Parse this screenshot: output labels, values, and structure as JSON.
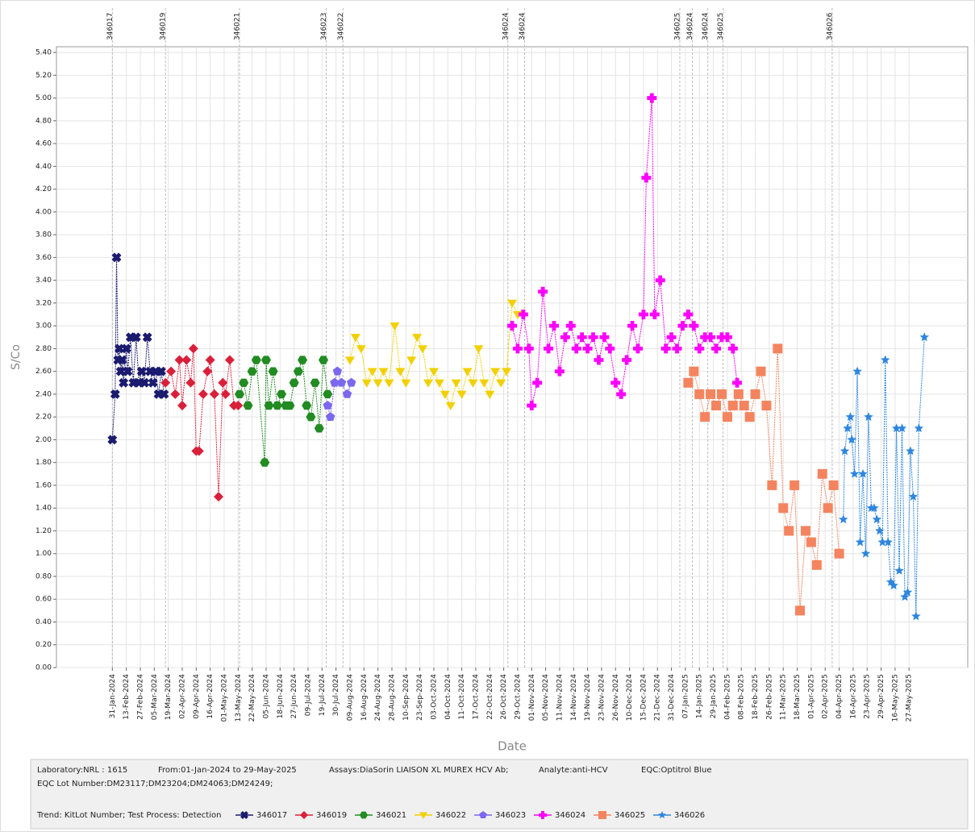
{
  "chart_data": {
    "type": "scatter",
    "ylabel": "S/Co",
    "xlabel": "Date",
    "ylim": [
      0,
      5.45
    ],
    "xlim": [
      -4,
      61.2
    ],
    "yticks": [
      {
        "value": 0,
        "label": "0.00"
      },
      {
        "value": 0.2,
        "label": "0.20"
      },
      {
        "value": 0.4,
        "label": "0.40"
      },
      {
        "value": 0.6,
        "label": "0.60"
      },
      {
        "value": 0.8,
        "label": "0.80"
      },
      {
        "value": 1,
        "label": "1.00"
      },
      {
        "value": 1.2,
        "label": "1.20"
      },
      {
        "value": 1.4,
        "label": "1.40"
      },
      {
        "value": 1.6,
        "label": "1.60"
      },
      {
        "value": 1.8,
        "label": "1.80"
      },
      {
        "value": 2,
        "label": "2.00"
      },
      {
        "value": 2.2,
        "label": "2.20"
      },
      {
        "value": 2.4,
        "label": "2.40"
      },
      {
        "value": 2.6,
        "label": "2.60"
      },
      {
        "value": 2.8,
        "label": "2.80"
      },
      {
        "value": 3,
        "label": "3.00"
      },
      {
        "value": 3.2,
        "label": "3.20"
      },
      {
        "value": 3.4,
        "label": "3.40"
      },
      {
        "value": 3.6,
        "label": "3.60"
      },
      {
        "value": 3.8,
        "label": "3.80"
      },
      {
        "value": 4,
        "label": "4.00"
      },
      {
        "value": 4.2,
        "label": "4.20"
      },
      {
        "value": 4.4,
        "label": "4.40"
      },
      {
        "value": 4.6,
        "label": "4.60"
      },
      {
        "value": 4.8,
        "label": "4.80"
      },
      {
        "value": 5,
        "label": "5.00"
      },
      {
        "value": 5.2,
        "label": "5.20"
      },
      {
        "value": 5.4,
        "label": "5.40"
      }
    ],
    "xticks": [
      {
        "value": 0,
        "label": "31-Jan-2024"
      },
      {
        "value": 1,
        "label": "13-Feb-2024"
      },
      {
        "value": 2,
        "label": "27-Feb-2024"
      },
      {
        "value": 3,
        "label": "05-Mar-2024"
      },
      {
        "value": 4,
        "label": "19-Mar-2024"
      },
      {
        "value": 5,
        "label": "02-Apr-2024"
      },
      {
        "value": 6,
        "label": "09-Apr-2024"
      },
      {
        "value": 7,
        "label": "16-Apr-2024"
      },
      {
        "value": 8,
        "label": "01-May-2024"
      },
      {
        "value": 9,
        "label": "13-May-2024"
      },
      {
        "value": 10,
        "label": "22-May-2024"
      },
      {
        "value": 11,
        "label": "05-Jun-2024"
      },
      {
        "value": 12,
        "label": "18-Jun-2024"
      },
      {
        "value": 13,
        "label": "27-Jun-2024"
      },
      {
        "value": 14,
        "label": "09-Jul-2024"
      },
      {
        "value": 15,
        "label": "19-Jul-2024"
      },
      {
        "value": 16,
        "label": "30-Jul-2024"
      },
      {
        "value": 17,
        "label": "09-Aug-2024"
      },
      {
        "value": 18,
        "label": "16-Aug-2024"
      },
      {
        "value": 19,
        "label": "24-Aug-2024"
      },
      {
        "value": 20,
        "label": "28-Aug-2024"
      },
      {
        "value": 21,
        "label": "10-Sep-2024"
      },
      {
        "value": 22,
        "label": "23-Sep-2024"
      },
      {
        "value": 23,
        "label": "03-Oct-2024"
      },
      {
        "value": 24,
        "label": "04-Oct-2024"
      },
      {
        "value": 25,
        "label": "11-Oct-2024"
      },
      {
        "value": 26,
        "label": "17-Oct-2024"
      },
      {
        "value": 27,
        "label": "22-Oct-2024"
      },
      {
        "value": 28,
        "label": "26-Oct-2024"
      },
      {
        "value": 29,
        "label": "29-Oct-2024"
      },
      {
        "value": 30,
        "label": "01-Nov-2024"
      },
      {
        "value": 31,
        "label": "05-Nov-2024"
      },
      {
        "value": 32,
        "label": "11-Nov-2024"
      },
      {
        "value": 33,
        "label": "14-Nov-2024"
      },
      {
        "value": 34,
        "label": "19-Nov-2024"
      },
      {
        "value": 35,
        "label": "23-Nov-2024"
      },
      {
        "value": 36,
        "label": "26-Nov-2024"
      },
      {
        "value": 37,
        "label": "10-Dec-2024"
      },
      {
        "value": 38,
        "label": "15-Dec-2024"
      },
      {
        "value": 39,
        "label": "21-Dec-2024"
      },
      {
        "value": 40,
        "label": "31-Dec-2024"
      },
      {
        "value": 41,
        "label": "07-Jan-2025"
      },
      {
        "value": 42,
        "label": "14-Jan-2025"
      },
      {
        "value": 43,
        "label": "29-Jan-2025"
      },
      {
        "value": 44,
        "label": "04-Feb-2025"
      },
      {
        "value": 45,
        "label": "08-Feb-2025"
      },
      {
        "value": 46,
        "label": "18-Feb-2025"
      },
      {
        "value": 47,
        "label": "26-Feb-2025"
      },
      {
        "value": 48,
        "label": "11-Mar-2025"
      },
      {
        "value": 49,
        "label": "18-Mar-2025"
      },
      {
        "value": 50,
        "label": "01-Apr-2025"
      },
      {
        "value": 51,
        "label": "02-Apr-2025"
      },
      {
        "value": 52,
        "label": "04-Apr-2025"
      },
      {
        "value": 53,
        "label": "16-Apr-2025"
      },
      {
        "value": 54,
        "label": "23-Apr-2025"
      },
      {
        "value": 55,
        "label": "29-Apr-2025"
      },
      {
        "value": 56,
        "label": "16-May-2025"
      },
      {
        "value": 57,
        "label": "27-May-2025"
      }
    ],
    "lot_lines": [
      {
        "x": 0,
        "label": "346017"
      },
      {
        "x": 3.8,
        "label": "346019"
      },
      {
        "x": 9.1,
        "label": "346021"
      },
      {
        "x": 15.3,
        "label": "346023"
      },
      {
        "x": 16.5,
        "label": "346022"
      },
      {
        "x": 28.3,
        "label": "346024"
      },
      {
        "x": 29.5,
        "label": "346024"
      },
      {
        "x": 40.6,
        "label": "346025"
      },
      {
        "x": 41.5,
        "label": "346024"
      },
      {
        "x": 42.6,
        "label": "346024"
      },
      {
        "x": 43.7,
        "label": "346025"
      },
      {
        "x": 51.5,
        "label": "346026"
      }
    ],
    "series": [
      {
        "name": "346017",
        "color": "#1a1a6e",
        "marker": "cross",
        "x": [
          0,
          0.2,
          0.3,
          0.4,
          0.5,
          0.6,
          0.7,
          0.8,
          1.0,
          1.1,
          1.3,
          1.5,
          1.7,
          1.9,
          2.1,
          2.3,
          2.5,
          2.7,
          2.9,
          3.1,
          3.3,
          3.5,
          3.7
        ],
        "values": [
          2.0,
          2.4,
          3.6,
          2.7,
          2.8,
          2.6,
          2.7,
          2.5,
          2.8,
          2.6,
          2.9,
          2.5,
          2.9,
          2.5,
          2.6,
          2.5,
          2.9,
          2.6,
          2.5,
          2.6,
          2.4,
          2.6,
          2.4
        ]
      },
      {
        "name": "346019",
        "color": "#d9203a",
        "marker": "diamond",
        "x": [
          3.8,
          4.2,
          4.5,
          4.8,
          5.0,
          5.3,
          5.6,
          5.8,
          6.0,
          6.2,
          6.5,
          6.8,
          7.0,
          7.3,
          7.6,
          7.9,
          8.1,
          8.4,
          8.7,
          9.0
        ],
        "values": [
          2.5,
          2.6,
          2.4,
          2.7,
          2.3,
          2.7,
          2.5,
          2.8,
          1.9,
          1.9,
          2.4,
          2.6,
          2.7,
          2.4,
          1.5,
          2.5,
          2.4,
          2.7,
          2.3,
          2.3
        ]
      },
      {
        "name": "346021",
        "color": "#228b22",
        "marker": "hexagon",
        "x": [
          9.1,
          9.4,
          9.7,
          10.0,
          10.3,
          10.9,
          11.0,
          11.2,
          11.5,
          11.8,
          12.1,
          12.4,
          12.7,
          13.0,
          13.3,
          13.6,
          13.9,
          14.2,
          14.5,
          14.8,
          15.1,
          15.4
        ],
        "values": [
          2.4,
          2.5,
          2.3,
          2.6,
          2.7,
          1.8,
          2.7,
          2.3,
          2.6,
          2.3,
          2.4,
          2.3,
          2.3,
          2.5,
          2.6,
          2.7,
          2.3,
          2.2,
          2.5,
          2.1,
          2.7,
          2.4
        ]
      },
      {
        "name": "346022",
        "color": "#f2d000",
        "marker": "triangle-down",
        "x": [
          17.0,
          17.4,
          17.8,
          18.2,
          18.6,
          19.0,
          19.4,
          19.8,
          20.2,
          20.6,
          21.0,
          21.4,
          21.8,
          22.2,
          22.6,
          23.0,
          23.4,
          23.8,
          24.2,
          24.6,
          25.0,
          25.4,
          25.8,
          26.2,
          26.6,
          27.0,
          27.4,
          27.8,
          28.2,
          28.6,
          29.0
        ],
        "values": [
          2.7,
          2.9,
          2.8,
          2.5,
          2.6,
          2.5,
          2.6,
          2.5,
          3.0,
          2.6,
          2.5,
          2.7,
          2.9,
          2.8,
          2.5,
          2.6,
          2.5,
          2.4,
          2.3,
          2.5,
          2.4,
          2.6,
          2.5,
          2.8,
          2.5,
          2.4,
          2.6,
          2.5,
          2.6,
          3.2,
          3.1
        ]
      },
      {
        "name": "346023",
        "color": "#7b68ee",
        "marker": "pentagon",
        "x": [
          15.4,
          15.6,
          15.9,
          16.1,
          16.4,
          16.8,
          17.1
        ],
        "values": [
          2.3,
          2.2,
          2.5,
          2.6,
          2.5,
          2.4,
          2.5
        ]
      },
      {
        "name": "346024",
        "color": "#ff00ff",
        "marker": "plus",
        "x": [
          28.6,
          29.0,
          29.4,
          29.8,
          30.0,
          30.4,
          30.8,
          31.2,
          31.6,
          32.0,
          32.4,
          32.8,
          33.2,
          33.6,
          34.0,
          34.4,
          34.8,
          35.2,
          35.6,
          36.0,
          36.4,
          36.8,
          37.2,
          37.6,
          38.0,
          38.2,
          38.6,
          38.8,
          39.2,
          39.6,
          40.0,
          40.4,
          40.8,
          41.2,
          41.6,
          42.0,
          42.4,
          42.8,
          43.2,
          43.6,
          44.0,
          44.4,
          44.7
        ],
        "values": [
          3.0,
          2.8,
          3.1,
          2.8,
          2.3,
          2.5,
          3.3,
          2.8,
          3.0,
          2.6,
          2.9,
          3.0,
          2.8,
          2.9,
          2.8,
          2.9,
          2.7,
          2.9,
          2.8,
          2.5,
          2.4,
          2.7,
          3.0,
          2.8,
          3.1,
          4.3,
          5.0,
          3.1,
          3.4,
          2.8,
          2.9,
          2.8,
          3.0,
          3.1,
          3.0,
          2.8,
          2.9,
          2.9,
          2.8,
          2.9,
          2.9,
          2.8,
          2.5
        ]
      },
      {
        "name": "346025",
        "color": "#f4845f",
        "marker": "square",
        "x": [
          41.2,
          41.6,
          42.0,
          42.4,
          42.8,
          43.2,
          43.6,
          44.0,
          44.4,
          44.8,
          45.2,
          45.6,
          46.0,
          46.4,
          46.8,
          47.2,
          47.6,
          48.0,
          48.4,
          48.8,
          49.2,
          49.6,
          50.0,
          50.4,
          50.8,
          51.2,
          51.6,
          52.0
        ],
        "values": [
          2.5,
          2.6,
          2.4,
          2.2,
          2.4,
          2.3,
          2.4,
          2.2,
          2.3,
          2.4,
          2.3,
          2.2,
          2.4,
          2.6,
          2.3,
          1.6,
          2.8,
          1.4,
          1.2,
          1.6,
          0.5,
          1.2,
          1.1,
          0.9,
          1.7,
          1.4,
          1.6,
          1.0
        ]
      },
      {
        "name": "346026",
        "color": "#2e86de",
        "marker": "star",
        "x": [
          52.3,
          52.4,
          52.6,
          52.8,
          52.9,
          53.1,
          53.3,
          53.5,
          53.7,
          53.9,
          54.1,
          54.3,
          54.5,
          54.7,
          54.9,
          55.1,
          55.3,
          55.5,
          55.7,
          55.9,
          56.1,
          56.3,
          56.5,
          56.7,
          56.9,
          57.1,
          57.3,
          57.5,
          57.7,
          58.1
        ],
        "values": [
          1.3,
          1.9,
          2.1,
          2.2,
          2.0,
          1.7,
          2.6,
          1.1,
          1.7,
          1.0,
          2.2,
          1.4,
          1.4,
          1.3,
          1.2,
          1.1,
          2.7,
          1.1,
          0.75,
          0.72,
          2.1,
          0.85,
          2.1,
          0.62,
          0.66,
          1.9,
          1.5,
          0.45,
          2.1,
          2.9
        ]
      }
    ]
  },
  "info": {
    "laboratory": "Laboratory:NRL : 1615",
    "from": "From:01-Jan-2024 to 29-May-2025",
    "assays": "Assays:DiaSorin LIAISON XL MUREX HCV Ab;",
    "analyte": "Analyte:anti-HCV",
    "eqc": "EQC:Optitrol Blue",
    "eqc_lot": "EQC Lot Number:DM23117;DM23204;DM24063;DM24249;",
    "trend": "Trend: KitLot Number; Test Process: Detection"
  }
}
